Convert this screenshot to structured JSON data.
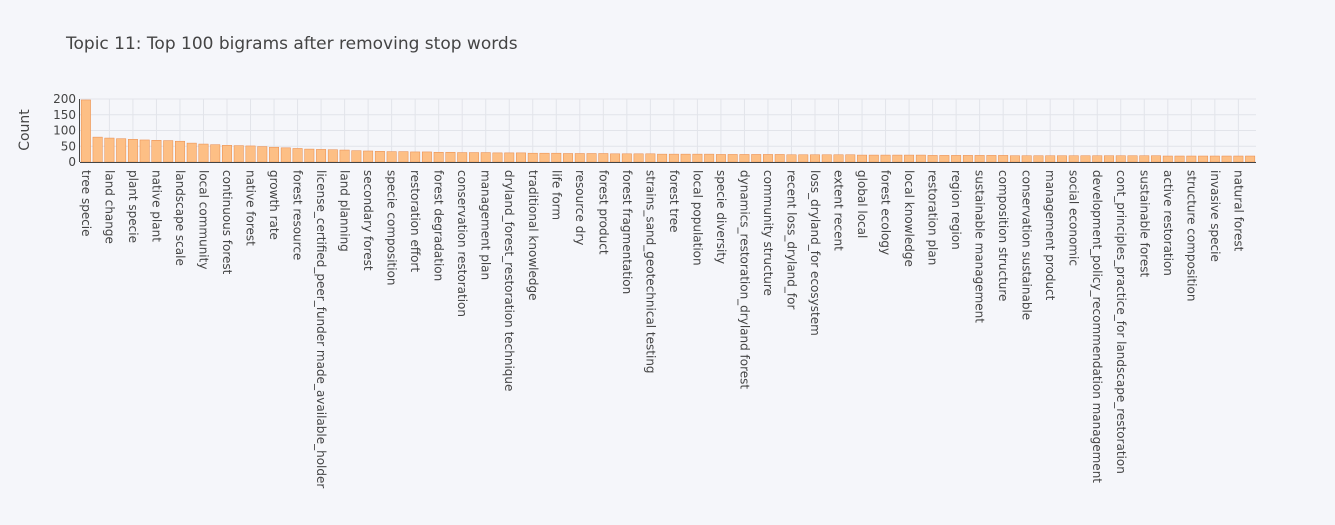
{
  "chart_data": {
    "type": "bar",
    "title": "Topic 11: Top 100 bigrams after removing stop words",
    "xlabel": "",
    "ylabel": "Count",
    "ylim": [
      0,
      200
    ],
    "yticks": [
      0,
      50,
      100,
      150,
      200
    ],
    "grid": true,
    "legend": "none",
    "colors": {
      "bar_fill": "#fdbf85",
      "bar_stroke": "#e8894a",
      "grid": "#e2e4ea",
      "axis": "#444444",
      "background": "#f5f6fa"
    },
    "categories": [
      "tree specie",
      "",
      "land change",
      "",
      "plant specie",
      "",
      "native plant",
      "",
      "landscape scale",
      "",
      "local community",
      "",
      "continuous forest",
      "",
      "native forest",
      "",
      "growth rate",
      "",
      "forest resource",
      "",
      "license_certified_peer_funder made_available_holder",
      "",
      "land planning",
      "",
      "secondary forest",
      "",
      "specie composition",
      "",
      "restoration effort",
      "",
      "forest degradation",
      "",
      "conservation restoration",
      "",
      "management plan",
      "",
      "dryland_forest_restoration technique",
      "",
      "traditional knowledge",
      "",
      "life form",
      "",
      "resource dry",
      "",
      "forest product",
      "",
      "forest fragmentation",
      "",
      "strains_sand_geotechnical testing",
      "",
      "forest tree",
      "",
      "local population",
      "",
      "specie diversity",
      "",
      "dynamics_restoration_dryland forest",
      "",
      "community structure",
      "",
      "recent loss_dryland_for",
      "",
      "loss_dryland_for ecosystem",
      "",
      "extent recent",
      "",
      "global local",
      "",
      "forest ecology",
      "",
      "local knowledge",
      "",
      "restoration plan",
      "",
      "region region",
      "",
      "sustainable management",
      "",
      "composition structure",
      "",
      "conservation sustainable",
      "",
      "management product",
      "",
      "social economic",
      "",
      "development_policy_recommendation management",
      "",
      "cont_principles_practice_for landscape_restoration",
      "",
      "sustainable forest",
      "",
      "active restoration",
      "",
      "structure composition",
      "",
      "invasive specie",
      "",
      "natural forest",
      ""
    ],
    "values": [
      197,
      79,
      76,
      74,
      72,
      70,
      69,
      68,
      66,
      60,
      57,
      55,
      53,
      52,
      51,
      49,
      47,
      45,
      43,
      41,
      40,
      39,
      38,
      36,
      35,
      34,
      33,
      33,
      32,
      32,
      31,
      31,
      30,
      30,
      30,
      29,
      29,
      29,
      28,
      28,
      28,
      27,
      27,
      27,
      27,
      26,
      26,
      26,
      26,
      25,
      25,
      25,
      25,
      25,
      24,
      24,
      24,
      24,
      24,
      24,
      23,
      23,
      23,
      23,
      23,
      23,
      22,
      22,
      22,
      22,
      22,
      22,
      21,
      21,
      21,
      21,
      21,
      21,
      21,
      20,
      20,
      20,
      20,
      20,
      20,
      20,
      20,
      20,
      20,
      20,
      20,
      20,
      19,
      19,
      19,
      19,
      19,
      19,
      19,
      19
    ]
  }
}
